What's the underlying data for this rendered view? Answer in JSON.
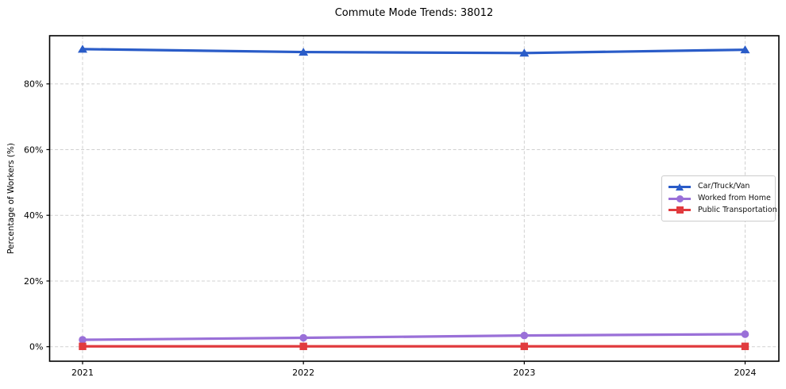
{
  "chart_data": {
    "type": "line",
    "title": "Commute Mode Trends: 38012",
    "xlabel": "",
    "ylabel": "Percentage of Workers (%)",
    "x": [
      2021,
      2022,
      2023,
      2024
    ],
    "x_tick_labels": [
      "2021",
      "2022",
      "2023",
      "2024"
    ],
    "y_ticks": [
      0,
      20,
      40,
      60,
      80
    ],
    "y_tick_labels": [
      "0%",
      "20%",
      "40%",
      "60%",
      "80%"
    ],
    "ylim": [
      -4.4,
      94.7
    ],
    "grid": true,
    "grid_style": "dashed",
    "grid_color": "#cccccc",
    "axis_color": "#000000",
    "legend_position": "center-right",
    "series": [
      {
        "name": "Car/Truck/Van",
        "marker": "triangle",
        "color": "#2a5cc8",
        "values": [
          90.6,
          89.7,
          89.4,
          90.4
        ]
      },
      {
        "name": "Worked from Home",
        "marker": "circle",
        "color": "#9a70d8",
        "values": [
          2.1,
          2.7,
          3.4,
          3.8
        ]
      },
      {
        "name": "Public Transportation",
        "marker": "square",
        "color": "#e13b3e",
        "values": [
          0.1,
          0.1,
          0.1,
          0.1
        ]
      }
    ]
  }
}
